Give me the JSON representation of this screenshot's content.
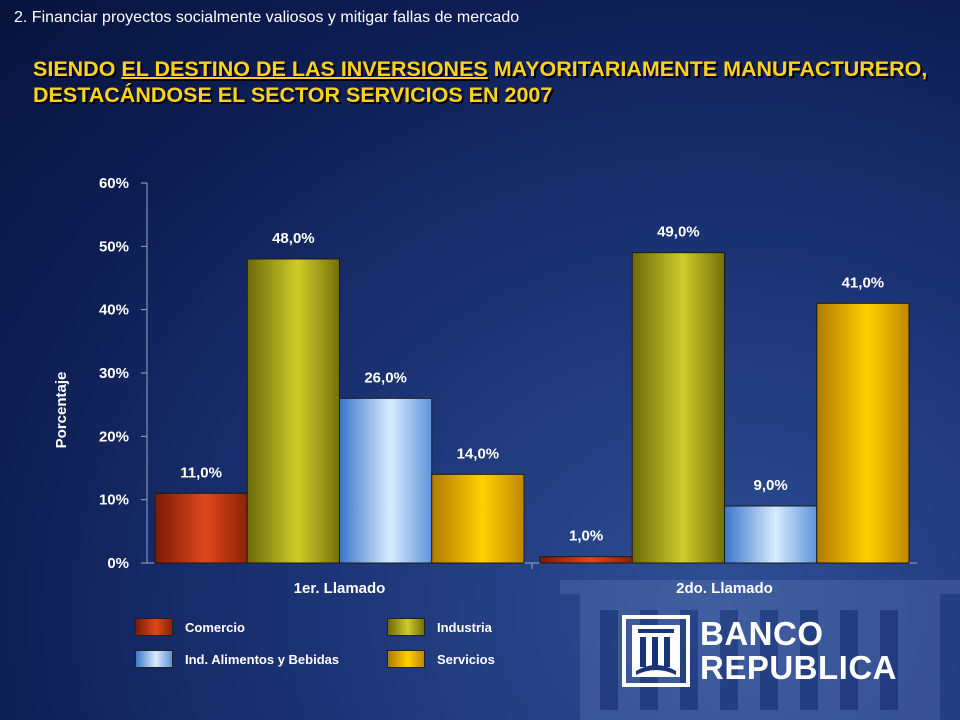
{
  "header": {
    "section_label": "2.  Financiar proyectos socialmente valiosos y mitigar fallas de mercado",
    "headline_part1": "SIENDO ",
    "headline_underlined": "EL DESTINO DE LAS INVERSIONES",
    "headline_part2": " MAYORITARIAMENTE MANUFACTURERO, DESTACÁNDOSE EL SECTOR SERVICIOS EN 2007"
  },
  "chart_data": {
    "type": "bar",
    "categories": [
      "1er. Llamado",
      "2do. Llamado"
    ],
    "series": [
      {
        "name": "Comercio",
        "values": [
          11.0,
          1.0
        ],
        "labels": [
          "11,0%",
          "1,0%"
        ],
        "color": "#c8330e"
      },
      {
        "name": "Industria",
        "values": [
          48.0,
          49.0
        ],
        "labels": [
          "48,0%",
          "49,0%"
        ],
        "color": "#b3b01a"
      },
      {
        "name": "Ind. Alimentos y Bebidas",
        "values": [
          26.0,
          9.0
        ],
        "labels": [
          "26,0%",
          "9,0%"
        ],
        "color": "#8cc0ef"
      },
      {
        "name": "Servicios",
        "values": [
          14.0,
          41.0
        ],
        "labels": [
          "14,0%",
          "41,0%"
        ],
        "color": "#f0b400"
      }
    ],
    "ylabel": "Porcentaje",
    "ylim": [
      0,
      60
    ],
    "yticks": [
      "0%",
      "10%",
      "20%",
      "30%",
      "40%",
      "50%",
      "60%"
    ],
    "grid": false,
    "legend_position": "bottom-left"
  },
  "logo": {
    "line1": "BANCO",
    "line2": "REPUBLICA"
  }
}
